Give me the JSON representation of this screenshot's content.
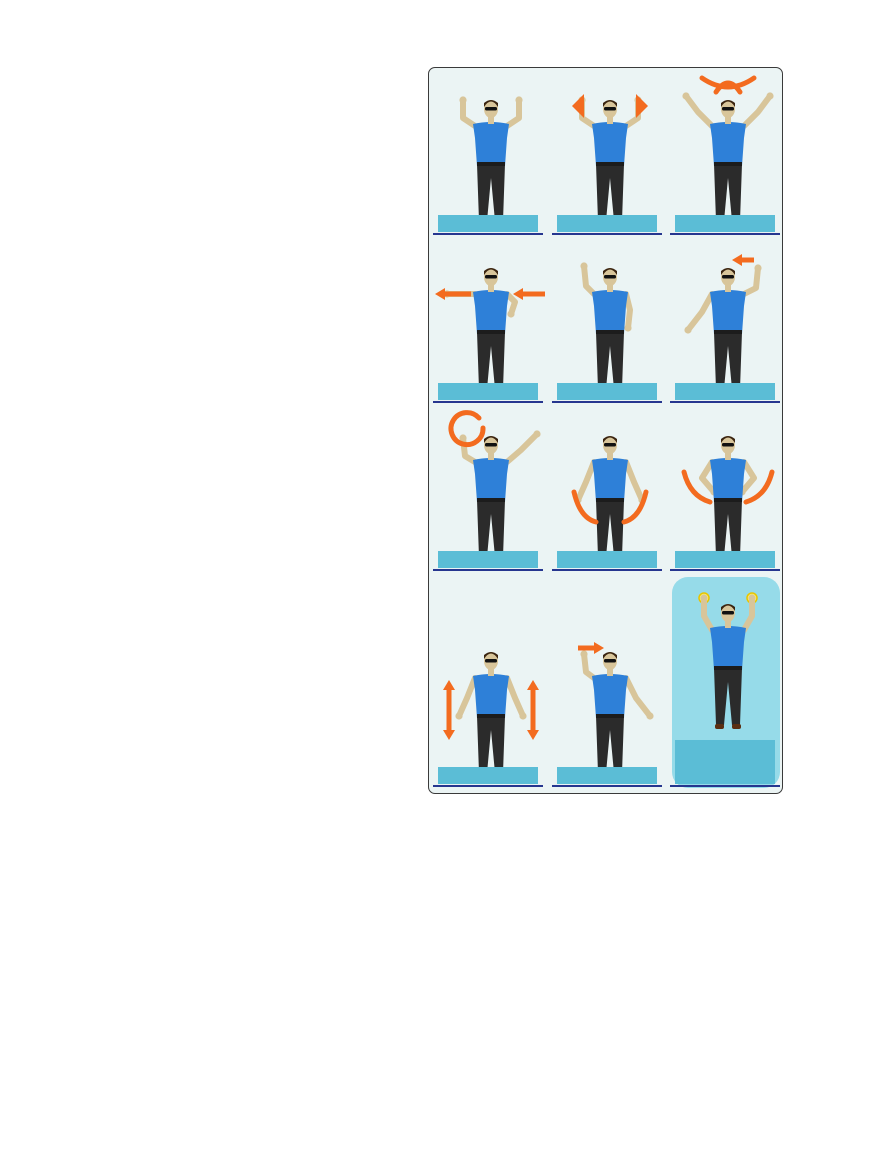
{
  "colors": {
    "panel_bg": "#ebf4f4",
    "label_bg": "#5bbdd6",
    "separator": "#26368f",
    "shirt": "#2e80d8",
    "pants": "#2b2b2b",
    "skin": "#d8c59a",
    "arrow": "#f36b1f",
    "highlight_bg": "#96dbe9"
  },
  "signals": [
    {
      "pose": "arms-raised-bent",
      "label": "",
      "arrow": "none"
    },
    {
      "pose": "arms-raised-bent",
      "label": "",
      "arrow": "cones"
    },
    {
      "pose": "arms-raised-wide",
      "label": "",
      "arrow": "cross-over-head"
    },
    {
      "pose": "arms-horizontal-bent",
      "label": "",
      "arrow": "left-horizontal"
    },
    {
      "pose": "right-arm-raised",
      "label": "",
      "arrow": "none"
    },
    {
      "pose": "left-raised-right-low",
      "label": "",
      "arrow": "left-upper"
    },
    {
      "pose": "right-raised-left-high",
      "label": "",
      "arrow": "circle-right"
    },
    {
      "pose": "arms-low-out",
      "label": "",
      "arrow": "swing-low"
    },
    {
      "pose": "hands-on-hips",
      "label": "",
      "arrow": "swing-side"
    },
    {
      "pose": "arms-low-out",
      "label": "",
      "arrow": "up-down"
    },
    {
      "pose": "right-raised-left-low",
      "label": "",
      "arrow": "right-upper"
    },
    {
      "pose": "wands-raised",
      "label": "",
      "arrow": "none",
      "highlight": true
    }
  ]
}
